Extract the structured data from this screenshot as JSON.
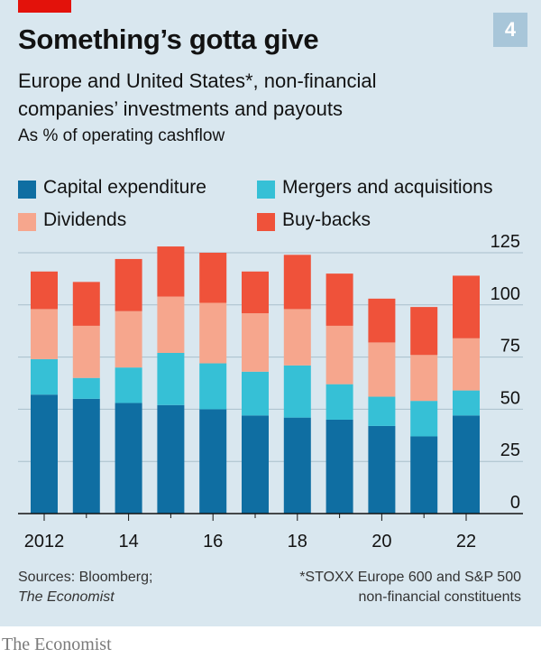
{
  "figure_number": "4",
  "title": "Something’s gotta give",
  "subtitle": "Europe and United States*, non-financial companies’ investments and payouts",
  "unit_label": "As % of operating cashflow",
  "legend": [
    {
      "label": "Capital expenditure",
      "color": "#0f6ea2"
    },
    {
      "label": "Mergers and acquisitions",
      "color": "#36c0d6"
    },
    {
      "label": "Dividends",
      "color": "#f6a68d"
    },
    {
      "label": "Buy-backs",
      "color": "#ef523a"
    }
  ],
  "chart_data": {
    "type": "bar",
    "stacked": true,
    "categories": [
      "2012",
      "2013",
      "2014",
      "2015",
      "2016",
      "2017",
      "2018",
      "2019",
      "2020",
      "2021",
      "2022"
    ],
    "x_tick_labels": [
      "2012",
      "14",
      "16",
      "18",
      "20",
      "22"
    ],
    "series": [
      {
        "name": "Capital expenditure",
        "color": "#0f6ea2",
        "values": [
          57,
          55,
          53,
          52,
          50,
          47,
          46,
          45,
          42,
          37,
          47
        ]
      },
      {
        "name": "Mergers and acquisitions",
        "color": "#36c0d6",
        "values": [
          17,
          10,
          17,
          25,
          22,
          21,
          25,
          17,
          14,
          17,
          12
        ]
      },
      {
        "name": "Dividends",
        "color": "#f6a68d",
        "values": [
          24,
          25,
          27,
          27,
          29,
          28,
          27,
          28,
          26,
          22,
          25
        ]
      },
      {
        "name": "Buy-backs",
        "color": "#ef523a",
        "values": [
          18,
          21,
          25,
          24,
          24,
          20,
          26,
          25,
          21,
          23,
          30
        ]
      }
    ],
    "ylim": [
      0,
      125
    ],
    "yticks": [
      0,
      25,
      50,
      75,
      100,
      125
    ],
    "y_axis_side": "right",
    "grid": true,
    "legend_position": "top"
  },
  "sources": {
    "line1": "Sources: Bloomberg;",
    "line2": "The Economist"
  },
  "footnote": {
    "line1": "*STOXX Europe 600 and S&P 500",
    "line2": "non-financial constituents"
  },
  "brand": "The Economist"
}
